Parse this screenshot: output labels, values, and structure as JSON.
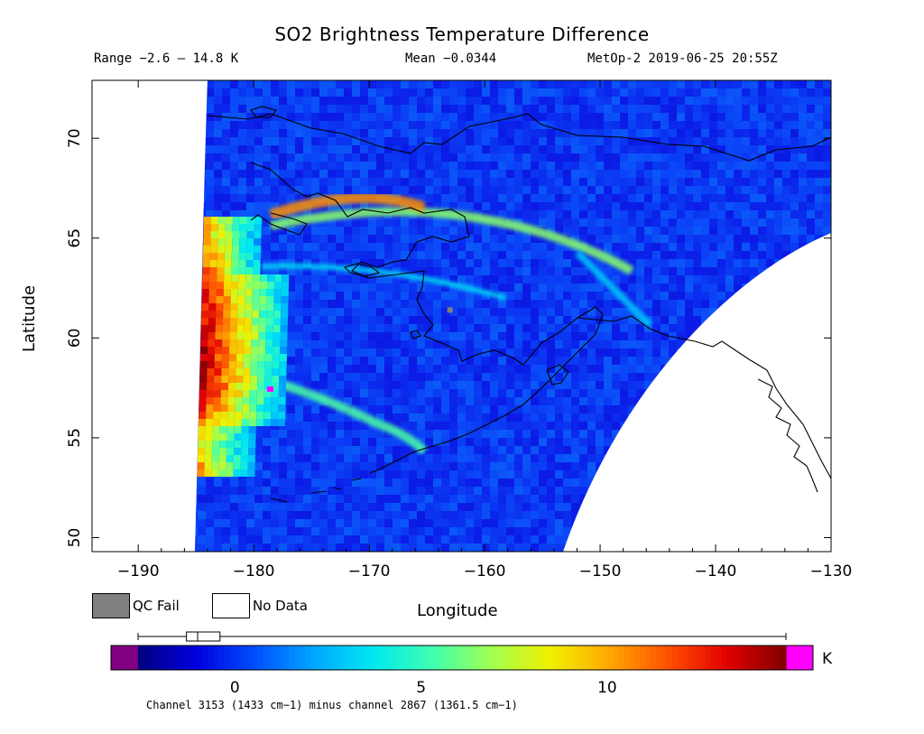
{
  "header": {
    "title": "SO2 Brightness Temperature Difference",
    "range": "Range −2.6 – 14.8 K",
    "mean": "Mean −0.0344",
    "satellite_time": "MetOp-2 2019-06-25 20:55Z"
  },
  "chart_data": {
    "type": "heatmap",
    "title": "SO2 Brightness Temperature Difference",
    "xlabel": "Longitude",
    "ylabel": "Latitude",
    "xlim": [
      -194,
      -130
    ],
    "ylim": [
      49.3,
      72.9
    ],
    "x_ticks": [
      -190,
      -180,
      -170,
      -160,
      -150,
      -140,
      -130
    ],
    "y_ticks": [
      50,
      55,
      60,
      65,
      70
    ],
    "x_tick_labels": [
      "−190",
      "−180",
      "−170",
      "−160",
      "−150",
      "−140",
      "−130"
    ],
    "y_tick_labels": [
      "50",
      "55",
      "60",
      "65",
      "70"
    ],
    "colorbar": {
      "unit": "K",
      "min": -2.6,
      "max": 14.8,
      "ticks": [
        0,
        5,
        10
      ],
      "tick_labels": [
        "0",
        "5",
        "10"
      ],
      "box_plot": {
        "whisker_low": -2.6,
        "q1": -1.3,
        "median": -1.0,
        "q3": -0.4,
        "whisker_high": 14.8
      },
      "colors": [
        "#000080",
        "#0000e0",
        "#0050ff",
        "#00a8ff",
        "#00e8f0",
        "#40ffb0",
        "#a0ff50",
        "#f0f000",
        "#ffa800",
        "#ff5000",
        "#e00000",
        "#800000"
      ],
      "underflow_color": "#800080",
      "overflow_color": "#ff00ff"
    },
    "plume_band_values": [
      {
        "lat": 65.3,
        "value": 9.5
      },
      {
        "lat": 62.5,
        "value": 12.5
      },
      {
        "lat": 59.6,
        "value": 14.0
      },
      {
        "lat": 57.5,
        "value": 13.5
      },
      {
        "lat": 54.5,
        "value": 8.0
      },
      {
        "lat": 53.5,
        "value": 11.0
      }
    ],
    "qc_fail_pixel": {
      "lon": -163,
      "lat": 61.4
    },
    "background_value": 0.0
  },
  "legend": {
    "qc_fail_label": "QC Fail",
    "no_data_label": "No Data",
    "qc_fail_color": "#7f7f7f",
    "no_data_color": "#ffffff"
  },
  "footnote": "Channel 3153 (1433 cm−1) minus channel 2867 (1361.5 cm−1)"
}
